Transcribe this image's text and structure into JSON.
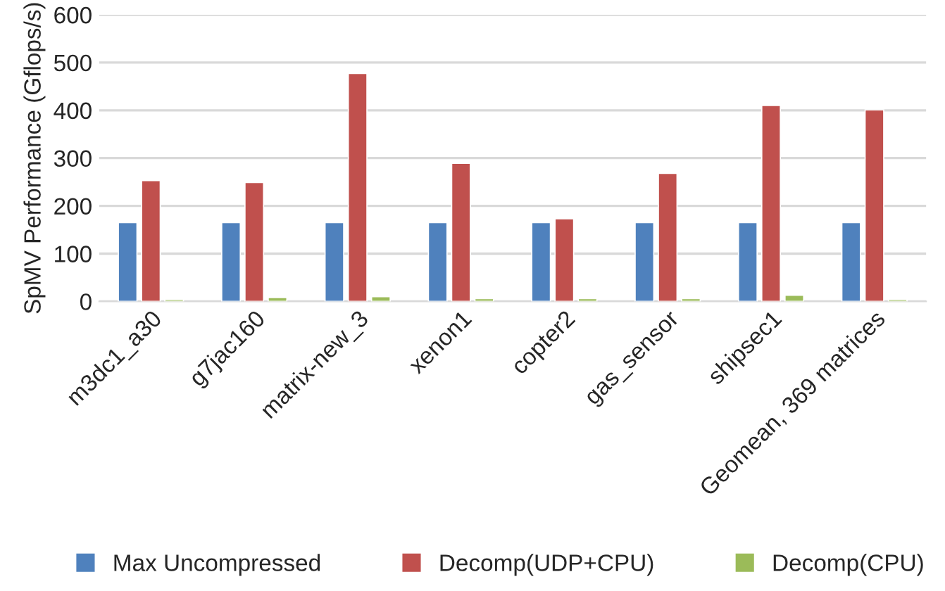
{
  "chart_data": {
    "type": "bar",
    "ylabel": "SpMV Performance (Gflops/s)",
    "categories": [
      "m3dc1_a30",
      "g7jac160",
      "matrix-new_3",
      "xenon1",
      "copter2",
      "gas_sensor",
      "shipsec1",
      "Geomean, 369 matrices"
    ],
    "series": [
      {
        "name": "Max Uncompressed",
        "color": "#4f81bd",
        "values": [
          165,
          165,
          165,
          165,
          165,
          165,
          165,
          165
        ]
      },
      {
        "name": "Decomp(UDP+CPU)",
        "color": "#c0504d",
        "values": [
          253,
          249,
          477,
          289,
          173,
          268,
          410,
          401
        ]
      },
      {
        "name": "Decomp(CPU)",
        "color": "#9bbb59",
        "values": [
          4,
          8,
          10,
          6,
          6,
          6,
          13,
          4
        ]
      }
    ],
    "ylim": [
      0,
      600
    ],
    "yticks": [
      0,
      100,
      200,
      300,
      400,
      500,
      600
    ],
    "grid": "y",
    "legend": "bottom"
  }
}
